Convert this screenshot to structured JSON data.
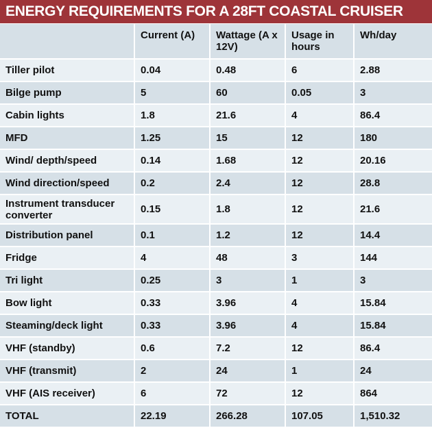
{
  "title": "ENERGY REQUIREMENTS FOR A 28FT COASTAL CRUISER",
  "colors": {
    "title_bg": "#9e3439",
    "row_light": "#eaf0f4",
    "row_dark": "#d6e0e7"
  },
  "headers": [
    "",
    "Current (A)",
    "Wattage (A x 12V)",
    "Usage in hours",
    "Wh/day"
  ],
  "rows": [
    [
      "Tiller pilot",
      "0.04",
      "0.48",
      "6",
      "2.88"
    ],
    [
      "Bilge pump",
      "5",
      "60",
      "0.05",
      "3"
    ],
    [
      "Cabin lights",
      "1.8",
      "21.6",
      "4",
      "86.4"
    ],
    [
      "MFD",
      "1.25",
      "15",
      "12",
      "180"
    ],
    [
      "Wind/ depth/speed",
      "0.14",
      "1.68",
      "12",
      "20.16"
    ],
    [
      "Wind direction/speed",
      "0.2",
      "2.4",
      "12",
      "28.8"
    ],
    [
      "Instrument transducer converter",
      "0.15",
      "1.8",
      "12",
      "21.6"
    ],
    [
      "Distribution panel",
      "0.1",
      "1.2",
      "12",
      "14.4"
    ],
    [
      "Fridge",
      "4",
      "48",
      "3",
      "144"
    ],
    [
      "Tri light",
      "0.25",
      "3",
      "1",
      "3"
    ],
    [
      "Bow light",
      "0.33",
      "3.96",
      "4",
      "15.84"
    ],
    [
      "Steaming/deck light",
      "0.33",
      "3.96",
      "4",
      "15.84"
    ],
    [
      "VHF (standby)",
      "0.6",
      "7.2",
      "12",
      "86.4"
    ],
    [
      "VHF (transmit)",
      "2",
      "24",
      "1",
      "24"
    ],
    [
      "VHF (AIS receiver)",
      "6",
      "72",
      "12",
      "864"
    ],
    [
      "TOTAL",
      "22.19",
      "266.28",
      "107.05",
      "1,510.32"
    ]
  ]
}
